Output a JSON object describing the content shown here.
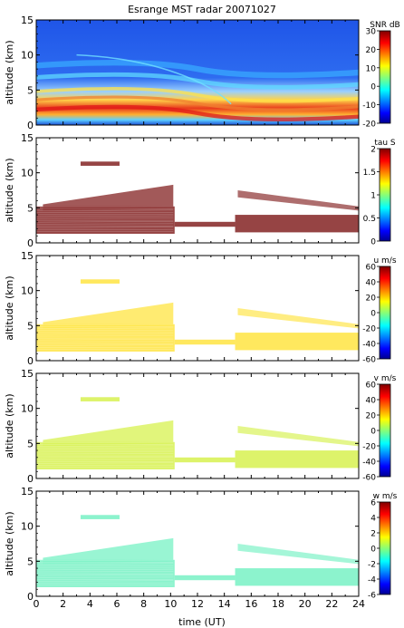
{
  "title": "Esrange MST radar 20071027",
  "xlabel": "time (UT)",
  "chart_data": [
    {
      "type": "heatmap",
      "ylabel": "altitude (km)",
      "colorbar_label": "SNR dB",
      "colorbar_range": [
        -20,
        30
      ],
      "colorbar_ticks": [
        "30",
        "20",
        "10",
        "0",
        "-10",
        "-20"
      ],
      "x_range": [
        0,
        24
      ],
      "y_range": [
        0,
        15
      ],
      "y_ticks": [
        "15",
        "10",
        "5",
        "0"
      ],
      "show_x_ticklabels": false,
      "fill": "full",
      "base_color": "#1a5cf0"
    },
    {
      "type": "heatmap",
      "ylabel": "altitude (km)",
      "colorbar_label": "tau S",
      "colorbar_range": [
        0,
        2
      ],
      "colorbar_ticks": [
        "2",
        "1.5",
        "1",
        "0.5",
        "0"
      ],
      "x_range": [
        0,
        24
      ],
      "y_range": [
        0,
        15
      ],
      "y_ticks": [
        "15",
        "10",
        "5",
        "0"
      ],
      "show_x_ticklabels": false,
      "fill": "sparse",
      "base_color": "#8b3030"
    },
    {
      "type": "heatmap",
      "ylabel": "altitude (km)",
      "colorbar_label": "u m/s",
      "colorbar_range": [
        -60,
        60
      ],
      "colorbar_ticks": [
        "60",
        "40",
        "20",
        "0",
        "-20",
        "-40",
        "-60"
      ],
      "x_range": [
        0,
        24
      ],
      "y_range": [
        0,
        15
      ],
      "y_ticks": [
        "15",
        "10",
        "5",
        "0"
      ],
      "show_x_ticklabels": false,
      "fill": "sparse",
      "base_color": "#ffe64d"
    },
    {
      "type": "heatmap",
      "ylabel": "altitude (km)",
      "colorbar_label": "v m/s",
      "colorbar_range": [
        -60,
        60
      ],
      "colorbar_ticks": [
        "60",
        "40",
        "20",
        "0",
        "-20",
        "-40",
        "-60"
      ],
      "x_range": [
        0,
        24
      ],
      "y_range": [
        0,
        15
      ],
      "y_ticks": [
        "15",
        "10",
        "5",
        "0"
      ],
      "show_x_ticklabels": false,
      "fill": "sparse",
      "base_color": "#d9f25a"
    },
    {
      "type": "heatmap",
      "ylabel": "altitude (km)",
      "colorbar_label": "w m/s",
      "colorbar_range": [
        -6,
        6
      ],
      "colorbar_ticks": [
        "6",
        "4",
        "2",
        "0",
        "-2",
        "-4",
        "-6"
      ],
      "x_range": [
        0,
        24
      ],
      "y_range": [
        0,
        15
      ],
      "y_ticks": [
        "15",
        "10",
        "5",
        "0"
      ],
      "x_ticks": [
        "0",
        "2",
        "4",
        "6",
        "8",
        "10",
        "12",
        "14",
        "16",
        "18",
        "20",
        "22",
        "24"
      ],
      "show_x_ticklabels": true,
      "fill": "sparse",
      "base_color": "#7ff2c8"
    }
  ]
}
